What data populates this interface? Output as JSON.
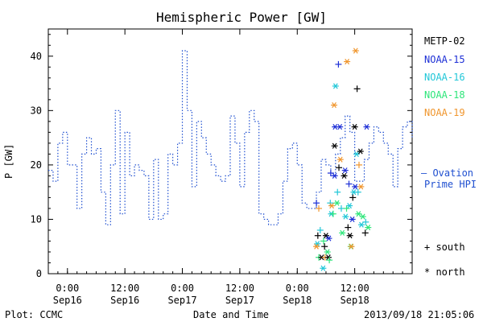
{
  "chart_data": {
    "type": "line",
    "title": "Hemispheric Power [GW]",
    "xlabel": "Date and Time",
    "ylabel": "P [GW]",
    "ylim": [
      0,
      45
    ],
    "yticks": [
      0,
      10,
      20,
      30,
      40
    ],
    "xticks": [
      {
        "t": 4,
        "time": "0:00",
        "date": "Sep16"
      },
      {
        "t": 16,
        "time": "12:00",
        "date": "Sep16"
      },
      {
        "t": 28,
        "time": "0:00",
        "date": "Sep17"
      },
      {
        "t": 40,
        "time": "12:00",
        "date": "Sep17"
      },
      {
        "t": 52,
        "time": "0:00",
        "date": "Sep18"
      },
      {
        "t": 64,
        "time": "12:00",
        "date": "Sep18"
      }
    ],
    "xlim": [
      0,
      76
    ],
    "x_units": "hours since 2013-09-15 20:00",
    "ovation": {
      "name": "Ovation Prime HPI",
      "color": "#1f4fd0",
      "x": [
        0,
        1,
        2,
        3,
        4,
        5,
        6,
        7,
        8,
        9,
        10,
        11,
        12,
        13,
        14,
        15,
        16,
        17,
        18,
        19,
        20,
        21,
        22,
        23,
        24,
        25,
        26,
        27,
        28,
        29,
        30,
        31,
        32,
        33,
        34,
        35,
        36,
        37,
        38,
        39,
        40,
        41,
        42,
        43,
        44,
        45,
        46,
        47,
        48,
        49,
        50,
        51,
        52,
        53,
        54,
        55,
        56,
        57,
        58,
        59,
        60,
        61,
        62,
        63,
        64,
        65,
        66,
        67,
        68,
        69,
        70,
        71,
        72,
        73,
        74,
        75,
        76
      ],
      "y": [
        19,
        17,
        24,
        26,
        20,
        20,
        12,
        22,
        25,
        22,
        23,
        15,
        9,
        20,
        30,
        11,
        26,
        18,
        20,
        19,
        18,
        10,
        21,
        10,
        11,
        22,
        20,
        24,
        41,
        30,
        16,
        28,
        25,
        22,
        20,
        18,
        17,
        18,
        29,
        24,
        16,
        26,
        30,
        28,
        11,
        10,
        9,
        9,
        11,
        17,
        23,
        24,
        20,
        13,
        12,
        12,
        15,
        21,
        20,
        18,
        22,
        25,
        29,
        26,
        17,
        17,
        21,
        24,
        27,
        26,
        24,
        22,
        16,
        23,
        27,
        28,
        25
      ]
    },
    "series": [
      {
        "name": "METP-02",
        "color": "#000000"
      },
      {
        "name": "NOAA-15",
        "color": "#1d2fd6"
      },
      {
        "name": "NOAA-16",
        "color": "#21c7d8"
      },
      {
        "name": "NOAA-18",
        "color": "#2ee67a"
      },
      {
        "name": "NOAA-19",
        "color": "#f0962e"
      }
    ],
    "points": [
      {
        "s": 1,
        "m": "+",
        "x": 56.0,
        "y": 13.0
      },
      {
        "s": 3,
        "m": "+",
        "x": 56.5,
        "y": 3.0
      },
      {
        "s": 4,
        "m": "+",
        "x": 56.5,
        "y": 12.0
      },
      {
        "s": 0,
        "m": "+",
        "x": 56.3,
        "y": 7.0
      },
      {
        "s": 2,
        "m": "*",
        "x": 56.2,
        "y": 5.5
      },
      {
        "s": 4,
        "m": "*",
        "x": 56.0,
        "y": 5.0
      },
      {
        "s": 2,
        "m": "+",
        "x": 56.8,
        "y": 8.0
      },
      {
        "s": 0,
        "m": "*",
        "x": 57.1,
        "y": 3.0
      },
      {
        "s": 2,
        "m": "*",
        "x": 57.4,
        "y": 1.0
      },
      {
        "s": 3,
        "m": "+",
        "x": 57.5,
        "y": 6.0
      },
      {
        "s": 0,
        "m": "+",
        "x": 57.7,
        "y": 5.0
      },
      {
        "s": 4,
        "m": "+",
        "x": 57.8,
        "y": 3.0
      },
      {
        "s": 0,
        "m": "*",
        "x": 58.0,
        "y": 7.0
      },
      {
        "s": 3,
        "m": "*",
        "x": 58.3,
        "y": 4.0
      },
      {
        "s": 0,
        "m": "*",
        "x": 58.5,
        "y": 3.0
      },
      {
        "s": 1,
        "m": "*",
        "x": 58.6,
        "y": 6.5
      },
      {
        "s": 3,
        "m": "+",
        "x": 58.7,
        "y": 2.5
      },
      {
        "s": 2,
        "m": "+",
        "x": 58.9,
        "y": 13.0
      },
      {
        "s": 1,
        "m": "+",
        "x": 59.0,
        "y": 18.5
      },
      {
        "s": 2,
        "m": "*",
        "x": 59.1,
        "y": 11.0
      },
      {
        "s": 4,
        "m": "*",
        "x": 59.2,
        "y": 12.5
      },
      {
        "s": 3,
        "m": "+",
        "x": 59.5,
        "y": 11.0
      },
      {
        "s": 1,
        "m": "*",
        "x": 59.8,
        "y": 18.0
      },
      {
        "s": 0,
        "m": "*",
        "x": 59.8,
        "y": 23.5
      },
      {
        "s": 4,
        "m": "*",
        "x": 59.7,
        "y": 31.0
      },
      {
        "s": 2,
        "m": "*",
        "x": 60.0,
        "y": 34.5
      },
      {
        "s": 1,
        "m": "*",
        "x": 59.9,
        "y": 27.0
      },
      {
        "s": 3,
        "m": "*",
        "x": 60.3,
        "y": 13.0
      },
      {
        "s": 2,
        "m": "+",
        "x": 60.4,
        "y": 15.0
      },
      {
        "s": 1,
        "m": "+",
        "x": 60.6,
        "y": 38.5
      },
      {
        "s": 0,
        "m": "+",
        "x": 60.7,
        "y": 19.5
      },
      {
        "s": 1,
        "m": "*",
        "x": 60.9,
        "y": 27.0
      },
      {
        "s": 4,
        "m": "*",
        "x": 61.0,
        "y": 21.0
      },
      {
        "s": 2,
        "m": "+",
        "x": 61.2,
        "y": 12.0
      },
      {
        "s": 3,
        "m": "*",
        "x": 61.4,
        "y": 7.5
      },
      {
        "s": 0,
        "m": "*",
        "x": 61.8,
        "y": 18.0
      },
      {
        "s": 1,
        "m": "*",
        "x": 62.0,
        "y": 19.0
      },
      {
        "s": 2,
        "m": "*",
        "x": 62.1,
        "y": 10.5
      },
      {
        "s": 3,
        "m": "+",
        "x": 62.3,
        "y": 12.0
      },
      {
        "s": 4,
        "m": "*",
        "x": 62.4,
        "y": 39.0
      },
      {
        "s": 0,
        "m": "+",
        "x": 62.6,
        "y": 8.5
      },
      {
        "s": 1,
        "m": "+",
        "x": 62.8,
        "y": 16.5
      },
      {
        "s": 2,
        "m": "*",
        "x": 62.9,
        "y": 12.5
      },
      {
        "s": 0,
        "m": "*",
        "x": 63.0,
        "y": 7.0
      },
      {
        "s": 3,
        "m": "*",
        "x": 63.2,
        "y": 5.0
      },
      {
        "s": 4,
        "m": "*",
        "x": 63.3,
        "y": 5.0
      },
      {
        "s": 1,
        "m": "*",
        "x": 63.5,
        "y": 10.0
      },
      {
        "s": 0,
        "m": "+",
        "x": 63.6,
        "y": 14.0
      },
      {
        "s": 2,
        "m": "*",
        "x": 63.8,
        "y": 15.0
      },
      {
        "s": 0,
        "m": "*",
        "x": 64.0,
        "y": 27.0
      },
      {
        "s": 1,
        "m": "*",
        "x": 64.1,
        "y": 16.0
      },
      {
        "s": 4,
        "m": "*",
        "x": 64.2,
        "y": 41.0
      },
      {
        "s": 2,
        "m": "*",
        "x": 64.4,
        "y": 22.0
      },
      {
        "s": 0,
        "m": "+",
        "x": 64.5,
        "y": 34.0
      },
      {
        "s": 2,
        "m": "+",
        "x": 64.7,
        "y": 15.0
      },
      {
        "s": 3,
        "m": "*",
        "x": 64.8,
        "y": 11.0
      },
      {
        "s": 4,
        "m": "+",
        "x": 64.9,
        "y": 20.0
      },
      {
        "s": 0,
        "m": "*",
        "x": 65.2,
        "y": 22.5
      },
      {
        "s": 4,
        "m": "*",
        "x": 65.3,
        "y": 16.0
      },
      {
        "s": 2,
        "m": "*",
        "x": 65.4,
        "y": 9.0
      },
      {
        "s": 3,
        "m": "*",
        "x": 65.7,
        "y": 10.5
      },
      {
        "s": 2,
        "m": "+",
        "x": 66.3,
        "y": 9.5
      },
      {
        "s": 0,
        "m": "+",
        "x": 66.2,
        "y": 7.5
      },
      {
        "s": 1,
        "m": "*",
        "x": 66.5,
        "y": 27.0
      },
      {
        "s": 3,
        "m": "*",
        "x": 66.8,
        "y": 8.5
      }
    ]
  },
  "legend": {
    "items": [
      "METP-02",
      "NOAA-15",
      "NOAA-16",
      "NOAA-18",
      "NOAA-19"
    ],
    "colors": [
      "#000000",
      "#1d2fd6",
      "#21c7d8",
      "#2ee67a",
      "#f0962e"
    ]
  },
  "ovation_label": {
    "line1": "— Ovation",
    "line2": "Prime HPI"
  },
  "marker_key": {
    "south": "+ south",
    "north": "* north"
  },
  "footer": {
    "left": "Plot: CCMC",
    "center": "Date and Time",
    "right": "2013/09/18 21:05:06"
  }
}
